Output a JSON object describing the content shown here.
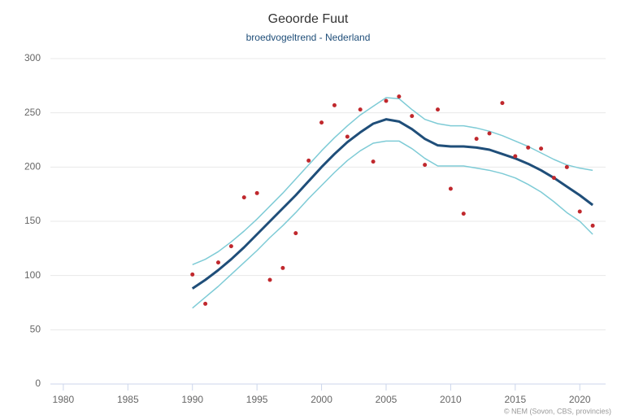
{
  "chart_data": {
    "type": "line",
    "title": "Geoorde Fuut",
    "subtitle": "broedvogeltrend - Nederland",
    "source": "© NEM (Sovon, CBS, provincies)",
    "x": [
      1990,
      1991,
      1992,
      1993,
      1994,
      1995,
      1996,
      1997,
      1998,
      1999,
      2000,
      2001,
      2002,
      2003,
      2004,
      2005,
      2006,
      2007,
      2008,
      2009,
      2010,
      2011,
      2012,
      2013,
      2014,
      2015,
      2016,
      2017,
      2018,
      2019,
      2020,
      2021
    ],
    "series": [
      {
        "style": "line",
        "color": "#7ecbd6",
        "width": 1.5,
        "values": [
          110,
          115,
          122,
          131,
          141,
          152,
          164,
          176,
          189,
          202,
          215,
          227,
          238,
          248,
          256,
          264,
          263,
          253,
          244,
          240,
          238,
          238,
          236,
          233,
          229,
          224,
          219,
          213,
          207,
          202,
          199,
          197
        ]
      },
      {
        "style": "line",
        "color": "#7ecbd6",
        "width": 1.5,
        "values": [
          70,
          80,
          90,
          101,
          112,
          123,
          135,
          146,
          158,
          171,
          183,
          195,
          206,
          215,
          222,
          224,
          224,
          217,
          208,
          201,
          201,
          201,
          199,
          197,
          194,
          190,
          184,
          177,
          168,
          158,
          150,
          138
        ]
      },
      {
        "style": "line",
        "color": "#1f4e79",
        "width": 3,
        "values": [
          88,
          96,
          105,
          115,
          126,
          138,
          150,
          162,
          174,
          187,
          200,
          212,
          223,
          232,
          240,
          244,
          242,
          235,
          226,
          220,
          219,
          219,
          218,
          216,
          212,
          208,
          203,
          197,
          190,
          182,
          174,
          165
        ]
      },
      {
        "style": "points",
        "color": "#c0282d",
        "values": [
          101,
          74,
          112,
          127,
          172,
          176,
          96,
          107,
          139,
          206,
          241,
          257,
          228,
          253,
          205,
          261,
          265,
          247,
          202,
          253,
          180,
          157,
          226,
          231,
          259,
          210,
          218,
          217,
          190,
          200,
          159,
          146
        ]
      }
    ],
    "xlim": [
      1979,
      2022
    ],
    "xticks": [
      1980,
      1985,
      1990,
      1995,
      2000,
      2005,
      2010,
      2015,
      2020
    ],
    "ylim": [
      0,
      300
    ],
    "yticks": [
      0,
      50,
      100,
      150,
      200,
      250,
      300
    ],
    "grid": true
  }
}
